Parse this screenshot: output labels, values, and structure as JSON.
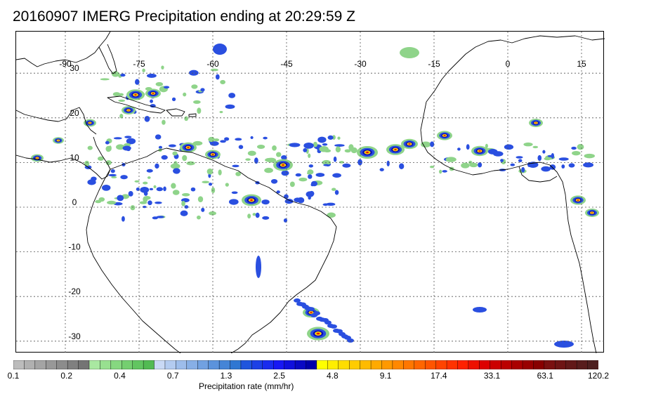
{
  "title": "20160907 IMERG Precipitation ending at 20:29:59 Z",
  "map": {
    "lon_labels": [
      "-90",
      "-75",
      "-60",
      "-45",
      "-30",
      "-15",
      "0",
      "15"
    ],
    "lat_labels": [
      "30",
      "20",
      "10",
      "0",
      "-10",
      "-20",
      "-30"
    ],
    "lon_values": [
      -90,
      -75,
      -60,
      -45,
      -30,
      -15,
      0,
      15
    ],
    "lat_values": [
      30,
      20,
      10,
      0,
      -10,
      -20,
      -30
    ],
    "gridline_style": "dotted",
    "coastline_color": "#000000"
  },
  "colorbar": {
    "label": "Precipitation rate (mm/hr)",
    "tick_labels": [
      "0.1",
      "0.2",
      "0.4",
      "0.7",
      "1.3",
      "2.5",
      "4.8",
      "9.1",
      "17.4",
      "33.1",
      "63.1",
      "120.2"
    ],
    "colors": [
      "#bcbcbc",
      "#b0b0b0",
      "#a4a4a4",
      "#989898",
      "#8c8c8c",
      "#808080",
      "#747474",
      "#a9e8a1",
      "#98e090",
      "#86d880",
      "#74cf70",
      "#62c561",
      "#52bb53",
      "#c9d9f5",
      "#b3cbf0",
      "#9dbdeb",
      "#87afe6",
      "#71a1e1",
      "#5b93dc",
      "#4585d7",
      "#2f77d2",
      "#1f55dd",
      "#1c40e6",
      "#1a2cee",
      "#1818f4",
      "#1010dd",
      "#0909c4",
      "#0000aa",
      "#ffff00",
      "#ffee00",
      "#ffdd00",
      "#ffcc00",
      "#ffbb00",
      "#ffaa00",
      "#ff9900",
      "#ff8800",
      "#ff7700",
      "#ff6600",
      "#ff5500",
      "#ff4400",
      "#ff3300",
      "#ff2200",
      "#ee1100",
      "#dd0000",
      "#cc0000",
      "#bb0000",
      "#aa0000",
      "#990000",
      "#880000",
      "#7a1010",
      "#6e1414",
      "#621818",
      "#581c1c",
      "#4e1f1f"
    ]
  },
  "legend_colors": {
    "light_green": "#8fd48a",
    "blue": "#2a4fe0",
    "dark_blue": "#0a0ab0",
    "yellow": "#ffee00",
    "orange": "#ff8800",
    "red": "#dd1100"
  }
}
